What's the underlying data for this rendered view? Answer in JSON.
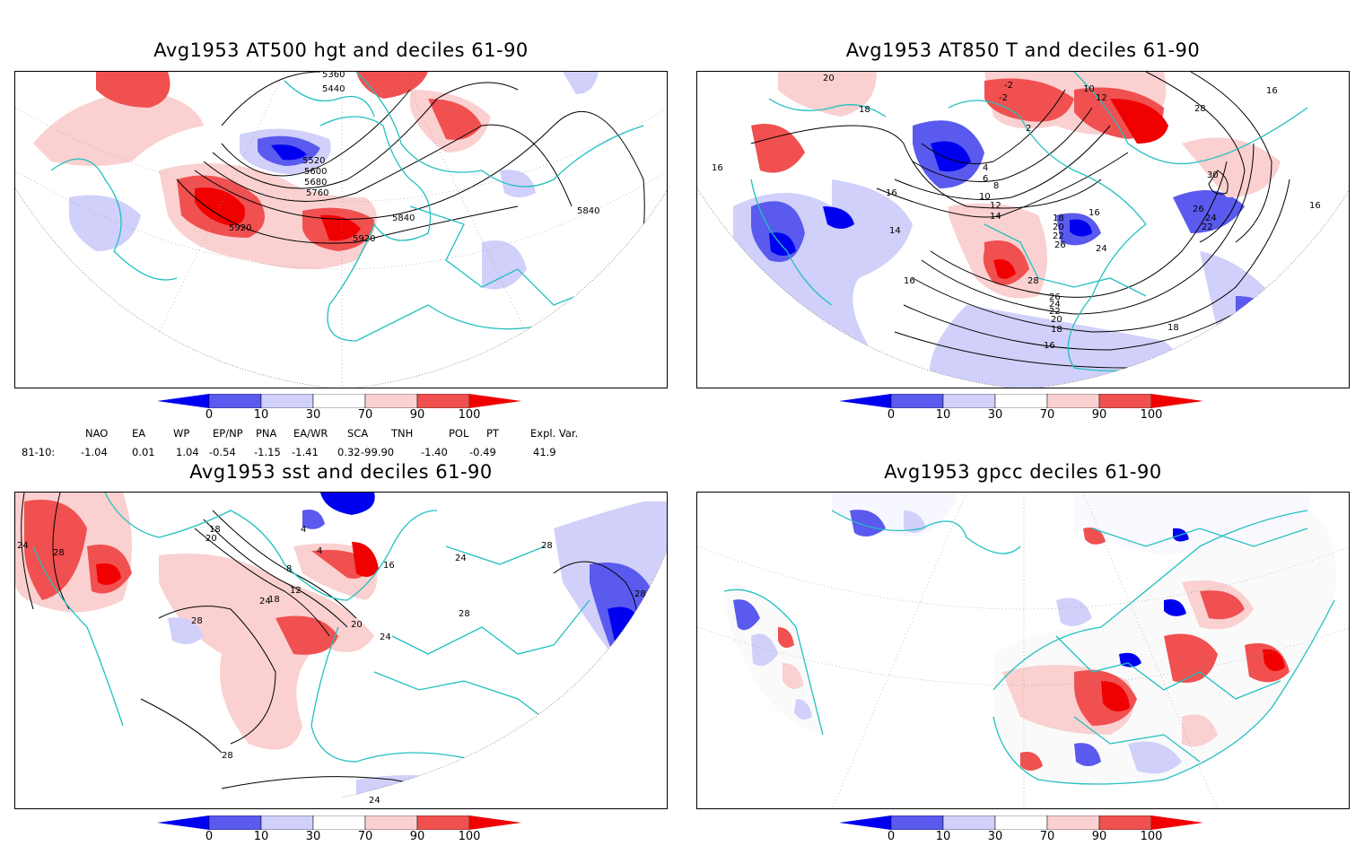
{
  "panels": [
    {
      "title": "Avg1953 AT500 hgt and deciles 61-90",
      "contour_labels": [
        "5360",
        "5440",
        "5520",
        "5600",
        "5680",
        "5760",
        "5840",
        "5920",
        "5920",
        "5840",
        "5920"
      ]
    },
    {
      "title": "Avg1953 AT850 T and deciles 61-90",
      "contour_labels": [
        "20",
        "18",
        "16",
        "-2",
        "-2",
        "10",
        "12",
        "2",
        "4",
        "6",
        "8",
        "10",
        "12",
        "14",
        "16",
        "18",
        "20",
        "22",
        "24",
        "26",
        "28",
        "26",
        "24",
        "22",
        "20",
        "18",
        "16",
        "14",
        "16",
        "16",
        "26",
        "24",
        "22",
        "28",
        "30",
        "16",
        "18",
        "16"
      ]
    },
    {
      "title": "Avg1953 sst and deciles 61-90",
      "contour_labels": [
        "24",
        "28",
        "18",
        "20",
        "4",
        "4",
        "8",
        "12",
        "16",
        "18",
        "24",
        "28",
        "20",
        "24",
        "28",
        "24",
        "28",
        "24",
        "28",
        "28"
      ]
    },
    {
      "title": "Avg1953 gpcc deciles 61-90",
      "contour_labels": []
    }
  ],
  "colorbar": {
    "ticks": [
      "0",
      "10",
      "30",
      "70",
      "90",
      "100"
    ],
    "colors": [
      "#0000f0",
      "#5a5aee",
      "#d0d0fa",
      "#ffffff",
      "#fad0d0",
      "#f05050",
      "#f00000"
    ]
  },
  "indices": {
    "headers": [
      "NAO",
      "EA",
      "WP",
      "EP/NP",
      "PNA",
      "EA/WR",
      "SCA",
      "TNH",
      "POL",
      "PT",
      "Expl. Var."
    ],
    "row_label": "81-10:",
    "values": [
      "-1.04",
      "0.01",
      "1.04",
      "-0.54",
      "-1.15",
      "-1.41",
      "0.32",
      "-99.90",
      "-1.40",
      "-0.49",
      "41.9"
    ]
  },
  "colors": {
    "coast": "#20c0c0",
    "deep_blue": "#0000f0",
    "mid_blue": "#5a5aee",
    "light_blue": "#d0d0fa",
    "light_red": "#fad0d0",
    "mid_red": "#f05050",
    "deep_red": "#f00000"
  }
}
